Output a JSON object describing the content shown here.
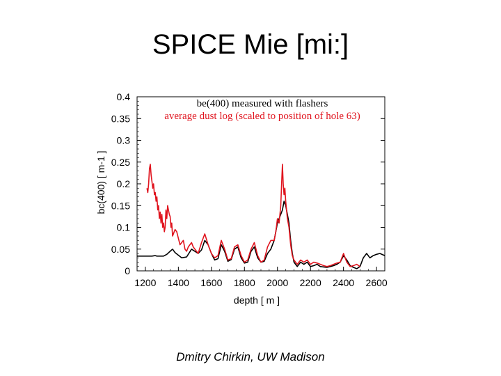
{
  "slide": {
    "title": "SPICE Mie [mi:]",
    "footer": "Dmitry Chirkin, UW Madison"
  },
  "chart_data": {
    "type": "line",
    "title": "",
    "xlabel": "depth [ m ]",
    "ylabel": "bc(400) [ m-1 ]",
    "xlim": [
      1150,
      2650
    ],
    "ylim": [
      0,
      0.4
    ],
    "xticks": [
      "1200",
      "1400",
      "1600",
      "1800",
      "2000",
      "2200",
      "2400",
      "2600"
    ],
    "yticks": [
      "0",
      "0.05",
      "0.1",
      "0.15",
      "0.2",
      "0.25",
      "0.3",
      "0.35",
      "0.4"
    ],
    "legend_position": "top-center",
    "series": [
      {
        "name": "be(400) measured with flashers",
        "color": "#000000",
        "x": [
          1150,
          1200,
          1240,
          1260,
          1270,
          1290,
          1310,
          1330,
          1350,
          1365,
          1380,
          1400,
          1420,
          1450,
          1480,
          1500,
          1520,
          1540,
          1560,
          1580,
          1600,
          1620,
          1640,
          1660,
          1680,
          1700,
          1720,
          1740,
          1760,
          1780,
          1800,
          1820,
          1840,
          1860,
          1880,
          1900,
          1920,
          1940,
          1960,
          1980,
          2000,
          2010,
          2020,
          2030,
          2040,
          2050,
          2060,
          2070,
          2080,
          2090,
          2100,
          2110,
          2120,
          2140,
          2160,
          2180,
          2200,
          2220,
          2240,
          2260,
          2280,
          2300,
          2320,
          2340,
          2360,
          2380,
          2400,
          2420,
          2440,
          2460,
          2480,
          2500,
          2520,
          2540,
          2560,
          2580,
          2600,
          2620,
          2650
        ],
        "y": [
          0.034,
          0.034,
          0.034,
          0.035,
          0.034,
          0.034,
          0.034,
          0.038,
          0.045,
          0.05,
          0.042,
          0.036,
          0.03,
          0.032,
          0.05,
          0.045,
          0.04,
          0.048,
          0.07,
          0.06,
          0.04,
          0.025,
          0.028,
          0.06,
          0.045,
          0.022,
          0.026,
          0.05,
          0.055,
          0.03,
          0.018,
          0.02,
          0.045,
          0.055,
          0.03,
          0.02,
          0.022,
          0.04,
          0.05,
          0.07,
          0.11,
          0.12,
          0.13,
          0.14,
          0.16,
          0.15,
          0.13,
          0.11,
          0.07,
          0.04,
          0.02,
          0.015,
          0.01,
          0.02,
          0.015,
          0.02,
          0.01,
          0.012,
          0.015,
          0.01,
          0.009,
          0.008,
          0.01,
          0.012,
          0.015,
          0.02,
          0.035,
          0.025,
          0.012,
          0.008,
          0.005,
          0.01,
          0.03,
          0.04,
          0.03,
          0.035,
          0.038,
          0.04,
          0.035
        ]
      },
      {
        "name": "average dust log (scaled to position of hole 63)",
        "color": "#e0141e",
        "x": [
          1210,
          1215,
          1220,
          1225,
          1230,
          1235,
          1240,
          1245,
          1250,
          1255,
          1260,
          1265,
          1270,
          1275,
          1280,
          1285,
          1290,
          1295,
          1300,
          1305,
          1310,
          1315,
          1320,
          1325,
          1330,
          1335,
          1340,
          1345,
          1350,
          1355,
          1360,
          1365,
          1370,
          1380,
          1390,
          1400,
          1410,
          1420,
          1430,
          1440,
          1450,
          1460,
          1470,
          1480,
          1490,
          1500,
          1520,
          1540,
          1560,
          1580,
          1600,
          1620,
          1640,
          1660,
          1680,
          1700,
          1720,
          1740,
          1760,
          1780,
          1800,
          1820,
          1840,
          1860,
          1880,
          1900,
          1920,
          1940,
          1960,
          1980,
          1990,
          2000,
          2010,
          2015,
          2020,
          2025,
          2030,
          2035,
          2040,
          2045,
          2050,
          2055,
          2060,
          2070,
          2080,
          2090,
          2100,
          2110,
          2120,
          2140,
          2160,
          2180,
          2200,
          2220,
          2240,
          2260,
          2280,
          2300,
          2320,
          2340,
          2360,
          2380,
          2390,
          2400,
          2410,
          2420,
          2440,
          2460,
          2480,
          2500
        ],
        "y": [
          0.19,
          0.18,
          0.2,
          0.235,
          0.245,
          0.22,
          0.205,
          0.19,
          0.2,
          0.175,
          0.18,
          0.16,
          0.17,
          0.14,
          0.15,
          0.12,
          0.135,
          0.11,
          0.13,
          0.1,
          0.11,
          0.09,
          0.1,
          0.14,
          0.12,
          0.15,
          0.14,
          0.13,
          0.125,
          0.1,
          0.11,
          0.08,
          0.085,
          0.095,
          0.09,
          0.075,
          0.06,
          0.065,
          0.07,
          0.05,
          0.045,
          0.055,
          0.06,
          0.065,
          0.055,
          0.05,
          0.04,
          0.065,
          0.085,
          0.06,
          0.04,
          0.03,
          0.035,
          0.07,
          0.05,
          0.025,
          0.028,
          0.055,
          0.06,
          0.035,
          0.02,
          0.025,
          0.05,
          0.065,
          0.035,
          0.02,
          0.025,
          0.055,
          0.07,
          0.07,
          0.09,
          0.12,
          0.11,
          0.13,
          0.15,
          0.2,
          0.245,
          0.2,
          0.175,
          0.19,
          0.16,
          0.14,
          0.12,
          0.1,
          0.06,
          0.035,
          0.025,
          0.02,
          0.015,
          0.025,
          0.02,
          0.025,
          0.015,
          0.02,
          0.018,
          0.015,
          0.012,
          0.01,
          0.012,
          0.015,
          0.018,
          0.02,
          0.03,
          0.04,
          0.03,
          0.02,
          0.01,
          0.012,
          0.015,
          0.01
        ]
      }
    ]
  }
}
